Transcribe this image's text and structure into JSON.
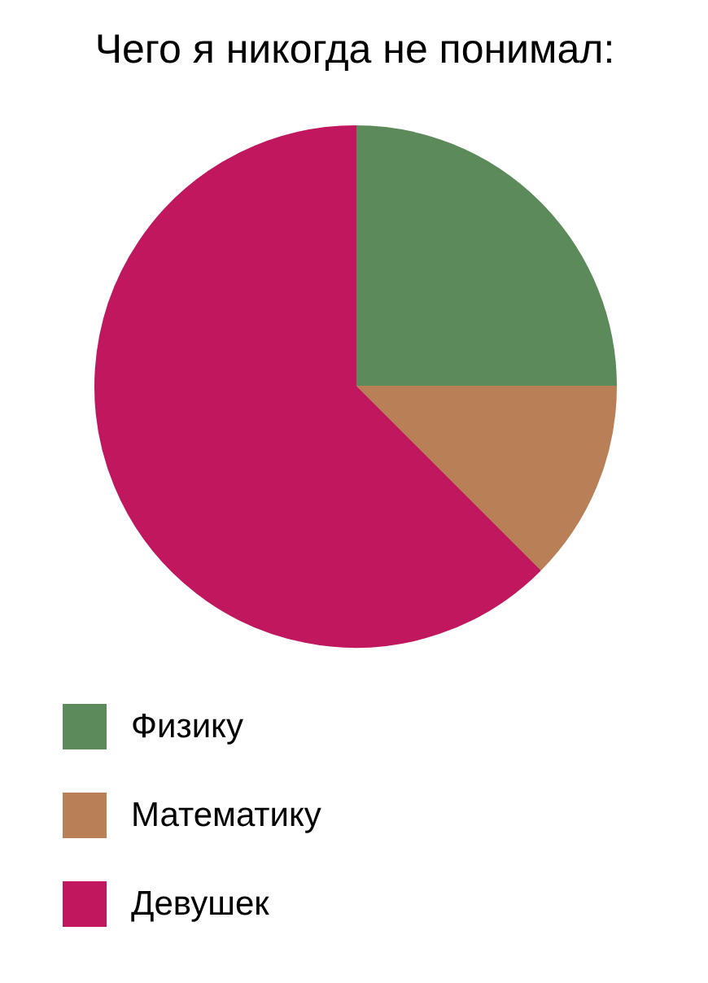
{
  "chart_data": {
    "type": "pie",
    "title": "Чего я никогда не понимал:",
    "categories": [
      "Физику",
      "Математику",
      "Девушек"
    ],
    "values": [
      25,
      12.5,
      62.5
    ],
    "colors": [
      "#5c8a5a",
      "#b98058",
      "#c0175f"
    ],
    "legend": "bottom"
  }
}
